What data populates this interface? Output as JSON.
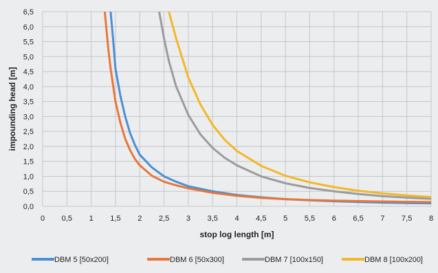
{
  "chart_data": {
    "type": "line",
    "xlabel": "stop log length [m]",
    "ylabel": "impounding head [m]",
    "xlim": [
      0,
      8
    ],
    "ylim": [
      0,
      6.5
    ],
    "x_ticks": [
      "0",
      "0,5",
      "1",
      "1,5",
      "2",
      "2,5",
      "3",
      "3,5",
      "4",
      "4,5",
      "5",
      "5,5",
      "6",
      "6,5",
      "7",
      "7,5",
      "8"
    ],
    "y_ticks": [
      "0,0",
      "0,5",
      "1,0",
      "1,5",
      "2,0",
      "2,5",
      "3,0",
      "3,5",
      "4,0",
      "4,5",
      "5,0",
      "5,5",
      "6,0",
      "6,5"
    ],
    "grid": true,
    "legend_position": "bottom",
    "series": [
      {
        "name": "DBM 5 [50x200]",
        "color": "#4a8fd4",
        "points": [
          [
            1.4,
            6.5
          ],
          [
            1.45,
            5.6
          ],
          [
            1.5,
            4.6
          ],
          [
            1.6,
            3.7
          ],
          [
            1.7,
            3.0
          ],
          [
            1.8,
            2.45
          ],
          [
            1.9,
            2.05
          ],
          [
            2.0,
            1.72
          ],
          [
            2.25,
            1.3
          ],
          [
            2.5,
            1.0
          ],
          [
            2.75,
            0.82
          ],
          [
            3.0,
            0.67
          ],
          [
            3.5,
            0.5
          ],
          [
            4.0,
            0.38
          ],
          [
            4.5,
            0.3
          ],
          [
            5.0,
            0.24
          ],
          [
            5.5,
            0.2
          ],
          [
            6.0,
            0.17
          ],
          [
            6.5,
            0.145
          ],
          [
            7.0,
            0.125
          ],
          [
            7.5,
            0.11
          ],
          [
            8.0,
            0.1
          ]
        ]
      },
      {
        "name": "DBM 6 [50x300]",
        "color": "#e8763a",
        "points": [
          [
            1.28,
            6.5
          ],
          [
            1.35,
            5.3
          ],
          [
            1.4,
            4.6
          ],
          [
            1.5,
            3.5
          ],
          [
            1.6,
            2.8
          ],
          [
            1.7,
            2.25
          ],
          [
            1.8,
            1.88
          ],
          [
            1.9,
            1.58
          ],
          [
            2.0,
            1.37
          ],
          [
            2.25,
            1.02
          ],
          [
            2.5,
            0.82
          ],
          [
            2.75,
            0.7
          ],
          [
            3.0,
            0.6
          ],
          [
            3.5,
            0.45
          ],
          [
            4.0,
            0.35
          ],
          [
            4.5,
            0.28
          ],
          [
            5.0,
            0.24
          ],
          [
            5.5,
            0.21
          ],
          [
            6.0,
            0.19
          ],
          [
            6.5,
            0.175
          ],
          [
            7.0,
            0.16
          ],
          [
            7.5,
            0.15
          ],
          [
            8.0,
            0.14
          ]
        ]
      },
      {
        "name": "DBM 7 [100x150]",
        "color": "#9b9b9b",
        "points": [
          [
            2.4,
            6.5
          ],
          [
            2.5,
            5.6
          ],
          [
            2.6,
            4.85
          ],
          [
            2.75,
            4.0
          ],
          [
            3.0,
            3.05
          ],
          [
            3.25,
            2.4
          ],
          [
            3.5,
            1.95
          ],
          [
            3.75,
            1.62
          ],
          [
            4.0,
            1.37
          ],
          [
            4.5,
            1.0
          ],
          [
            5.0,
            0.77
          ],
          [
            5.5,
            0.61
          ],
          [
            6.0,
            0.5
          ],
          [
            6.5,
            0.41
          ],
          [
            7.0,
            0.34
          ],
          [
            7.5,
            0.29
          ],
          [
            8.0,
            0.25
          ]
        ]
      },
      {
        "name": "DBM 8 [100x200]",
        "color": "#f2b824",
        "points": [
          [
            2.6,
            6.5
          ],
          [
            2.75,
            5.6
          ],
          [
            3.0,
            4.3
          ],
          [
            3.25,
            3.4
          ],
          [
            3.5,
            2.72
          ],
          [
            3.75,
            2.22
          ],
          [
            4.0,
            1.85
          ],
          [
            4.5,
            1.35
          ],
          [
            5.0,
            1.02
          ],
          [
            5.5,
            0.8
          ],
          [
            6.0,
            0.64
          ],
          [
            6.5,
            0.52
          ],
          [
            7.0,
            0.43
          ],
          [
            7.5,
            0.36
          ],
          [
            8.0,
            0.31
          ]
        ]
      }
    ]
  }
}
